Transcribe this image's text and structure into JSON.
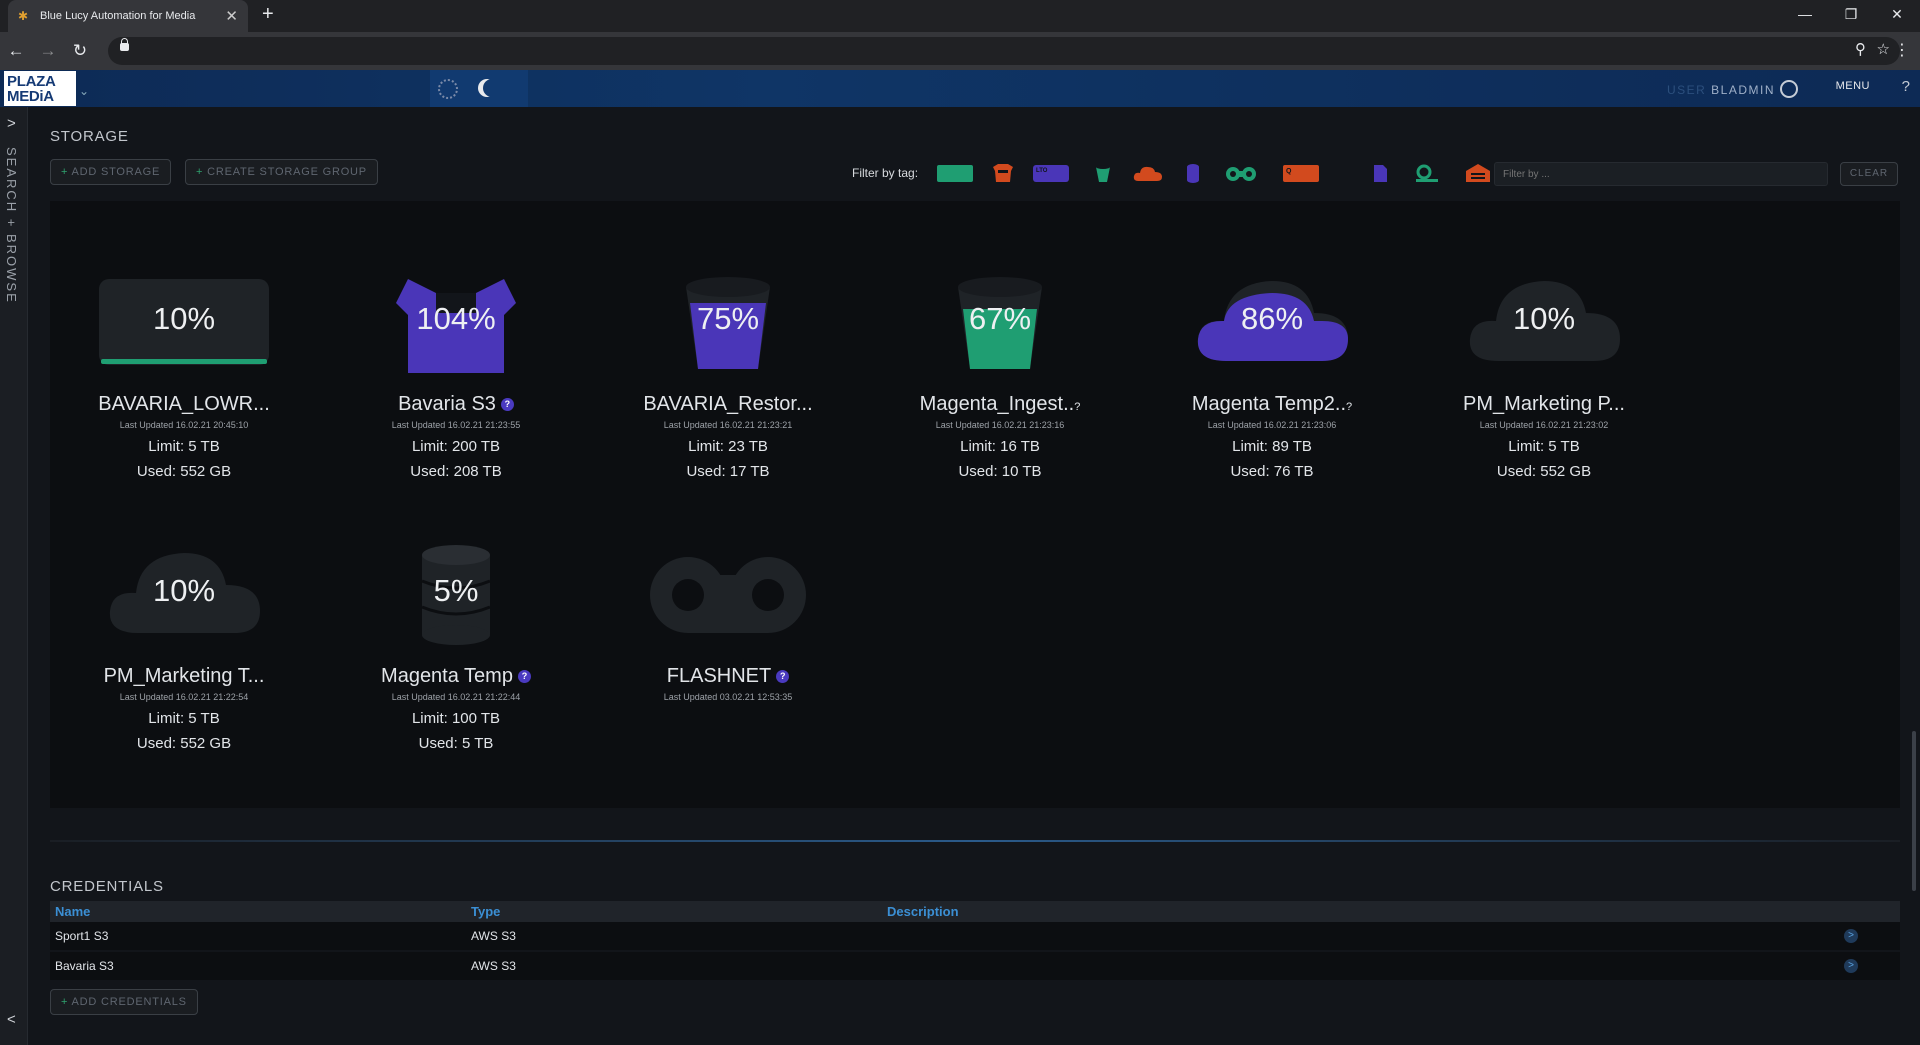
{
  "browser": {
    "tab_title": "Blue Lucy Automation for Media",
    "new_tab": "+",
    "close": "✕",
    "back": "←",
    "forward": "→",
    "reload": "↻",
    "min": "—",
    "restore": "❐",
    "close_win": "✕"
  },
  "header": {
    "logo": "PLAZA\nMEDiA",
    "user_label": "USER",
    "user_name": "BLADMIN",
    "menu": "MENU",
    "help": "?"
  },
  "sidebar": {
    "label": "SEARCH + BROWSE",
    "expand": ">",
    "collapse": "<"
  },
  "storage": {
    "title": "STORAGE",
    "add_storage": "ADD STORAGE",
    "create_group": "CREATE STORAGE GROUP",
    "filter_label": "Filter by tag:",
    "filter_placeholder": "Filter by ...",
    "clear": "CLEAR",
    "tag_colors": [
      "#1f9e72",
      "#d24a1e",
      "#4a36b8",
      "#1f9e72",
      "#d24a1e",
      "#4a36b8",
      "#1f9e72",
      "#d24a1e",
      "#4a36b8",
      "#1f9e72",
      "#d24a1e"
    ],
    "cards": [
      {
        "pct": "10%",
        "name": "BAVARIA_LOWR...",
        "help": false,
        "updated": "Last Updated 16.02.21 20:45:10",
        "limit": "Limit: 5 TB",
        "used": "Used: 552 GB",
        "icon": "drive-icon",
        "color": "#1f9e72"
      },
      {
        "pct": "104%",
        "name": "Bavaria S3",
        "help": true,
        "updated": "Last Updated 16.02.21 21:23:55",
        "limit": "Limit: 200 TB",
        "used": "Used: 208 TB",
        "icon": "box-icon",
        "color": "#4a36b8"
      },
      {
        "pct": "75%",
        "name": "BAVARIA_Restor...",
        "help": false,
        "updated": "Last Updated 16.02.21 21:23:21",
        "limit": "Limit: 23 TB",
        "used": "Used: 17 TB",
        "icon": "bucket-icon",
        "color": "#4a36b8"
      },
      {
        "pct": "67%",
        "name": "Magenta_Ingest..",
        "help": true,
        "updated": "Last Updated 16.02.21 21:23:16",
        "limit": "Limit: 16 TB",
        "used": "Used: 10 TB",
        "icon": "bucket-icon",
        "color": "#1f9e72"
      },
      {
        "pct": "86%",
        "name": "Magenta Temp2..",
        "help": true,
        "updated": "Last Updated 16.02.21 21:23:06",
        "limit": "Limit: 89 TB",
        "used": "Used: 76 TB",
        "icon": "cloud-icon",
        "color": "#4a36b8"
      },
      {
        "pct": "10%",
        "name": "PM_Marketing P...",
        "help": false,
        "updated": "Last Updated 16.02.21 21:23:02",
        "limit": "Limit: 5 TB",
        "used": "Used: 552 GB",
        "icon": "cloud-icon",
        "color": "#1f9e72"
      },
      {
        "pct": "10%",
        "name": "PM_Marketing T...",
        "help": false,
        "updated": "Last Updated 16.02.21 21:22:54",
        "limit": "Limit: 5 TB",
        "used": "Used: 552 GB",
        "icon": "cloud-icon",
        "color": "#1f9e72"
      },
      {
        "pct": "5%",
        "name": "Magenta Temp",
        "help": true,
        "updated": "Last Updated 16.02.21 21:22:44",
        "limit": "Limit: 100 TB",
        "used": "Used: 5 TB",
        "icon": "database-icon",
        "color": "#4a36b8"
      },
      {
        "pct": "",
        "name": "FLASHNET",
        "help": true,
        "updated": "Last Updated 03.02.21 12:53:35",
        "limit": "",
        "used": "",
        "icon": "tape-icon",
        "color": "#1f9e72"
      }
    ]
  },
  "credentials": {
    "title": "CREDENTIALS",
    "headers": {
      "name": "Name",
      "type": "Type",
      "description": "Description"
    },
    "rows": [
      {
        "name": "Sport1 S3",
        "type": "AWS S3",
        "description": ""
      },
      {
        "name": "Bavaria S3",
        "type": "AWS S3",
        "description": ""
      }
    ],
    "add": "ADD CREDENTIALS"
  }
}
